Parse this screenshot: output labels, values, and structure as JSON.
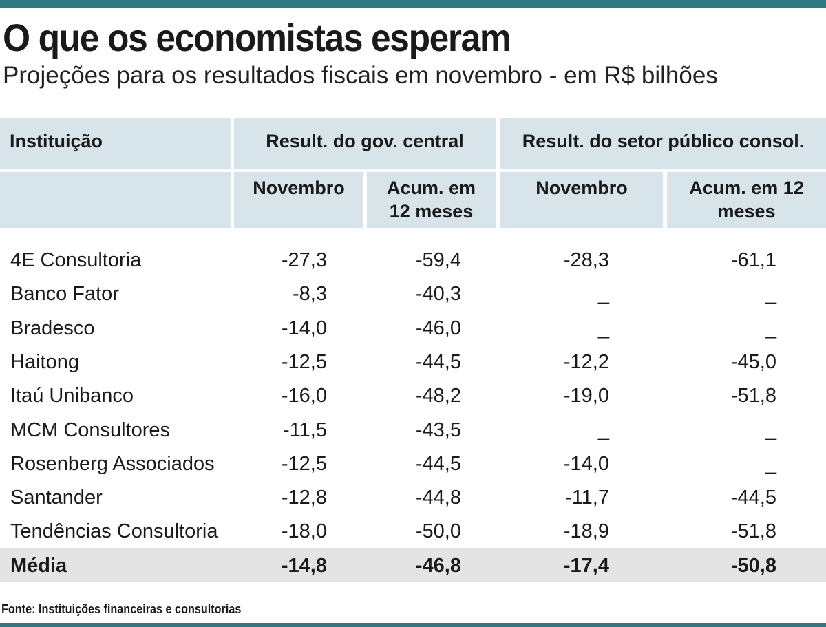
{
  "header": {
    "title": "O que os economistas esperam",
    "subtitle": "Projeções para os resultados fiscais em novembro - em R$ bilhões"
  },
  "table": {
    "corner": "Instituição",
    "group_headers": [
      "Result. do gov. central",
      "Result. do setor público consol."
    ],
    "sub_headers": [
      "Novembro",
      "Acum. em 12 meses",
      "Novembro",
      "Acum. em 12 meses"
    ],
    "rows": [
      [
        "4E Consultoria",
        "-27,3",
        "-59,4",
        "-28,3",
        "-61,1"
      ],
      [
        "Banco Fator",
        "-8,3",
        "-40,3",
        "_",
        "_"
      ],
      [
        "Bradesco",
        "-14,0",
        "-46,0",
        "_",
        "_"
      ],
      [
        "Haitong",
        "-12,5",
        "-44,5",
        "-12,2",
        "-45,0"
      ],
      [
        "Itaú Unibanco",
        "-16,0",
        "-48,2",
        "-19,0",
        "-51,8"
      ],
      [
        "MCM Consultores",
        "-11,5",
        "-43,5",
        "_",
        "_"
      ],
      [
        "Rosenberg Associados",
        "-12,5",
        "-44,5",
        "-14,0",
        "_"
      ],
      [
        "Santander",
        "-12,8",
        "-44,8",
        "-11,7",
        "-44,5"
      ],
      [
        "Tendências Consultoria",
        "-18,0",
        "-50,0",
        "-18,9",
        "-51,8"
      ]
    ],
    "total": [
      "Média",
      "-14,8",
      "-46,8",
      "-17,4",
      "-50,8"
    ]
  },
  "source": "Fonte: Instituições financeiras e consultorias"
}
